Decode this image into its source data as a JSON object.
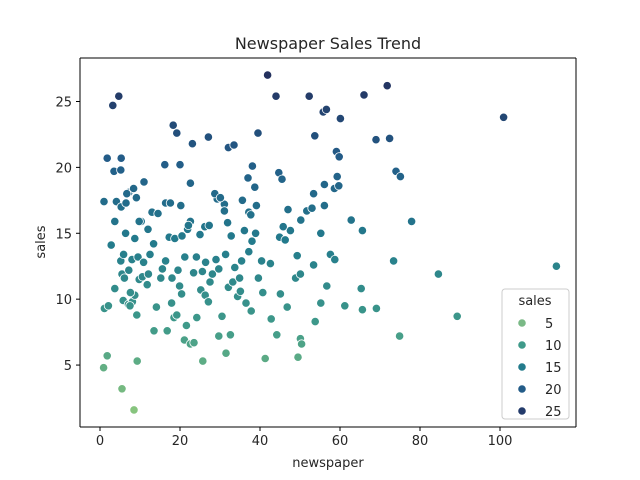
{
  "chart_data": {
    "type": "scatter",
    "title": "Newspaper Sales Trend",
    "xlabel": "newspaper",
    "ylabel": "sales",
    "xlim": [
      -5,
      119
    ],
    "ylim": [
      0.3,
      28.3
    ],
    "xticks": [
      0,
      20,
      40,
      60,
      80,
      100
    ],
    "yticks": [
      5,
      10,
      15,
      20,
      25
    ],
    "grid": false,
    "legend": {
      "title": "sales",
      "placement": "lower-right",
      "entries": [
        {
          "label": "5",
          "color": "#7ab986"
        },
        {
          "label": "10",
          "color": "#3f9a8a"
        },
        {
          "label": "15",
          "color": "#237b8c"
        },
        {
          "label": "20",
          "color": "#235c88"
        },
        {
          "label": "25",
          "color": "#233b6b"
        }
      ]
    },
    "color_scale": {
      "min": 1.6,
      "max": 27.0,
      "palette": [
        "#87c47e",
        "#3f9a8a",
        "#237b8c",
        "#235c88",
        "#24315e"
      ]
    },
    "points": [
      [
        0.9,
        4.8
      ],
      [
        1.8,
        5.7
      ],
      [
        5.5,
        3.2
      ],
      [
        8.5,
        1.6
      ],
      [
        9.3,
        5.3
      ],
      [
        1.1,
        9.3
      ],
      [
        2.1,
        9.5
      ],
      [
        3.7,
        10.8
      ],
      [
        5.8,
        9.9
      ],
      [
        7.1,
        9.6
      ],
      [
        8.1,
        9.8
      ],
      [
        8.7,
        10.3
      ],
      [
        9.2,
        8.8
      ],
      [
        7.5,
        9.5
      ],
      [
        5.5,
        11.9
      ],
      [
        6.1,
        11.6
      ],
      [
        7.6,
        10.5
      ],
      [
        9.8,
        11.5
      ],
      [
        10.6,
        11.7
      ],
      [
        11.8,
        11.1
      ],
      [
        12.1,
        11.9
      ],
      [
        13.5,
        7.6
      ],
      [
        14.1,
        9.4
      ],
      [
        16.8,
        7.6
      ],
      [
        17.9,
        9.7
      ],
      [
        18.5,
        8.6
      ],
      [
        19.2,
        8.8
      ],
      [
        19.9,
        11.0
      ],
      [
        20.4,
        10.4
      ],
      [
        21.1,
        6.9
      ],
      [
        21.6,
        8.0
      ],
      [
        22.6,
        6.6
      ],
      [
        23.5,
        6.7
      ],
      [
        24.2,
        8.6
      ],
      [
        25.7,
        5.3
      ],
      [
        25.2,
        10.7
      ],
      [
        26.3,
        10.3
      ],
      [
        27.1,
        9.8
      ],
      [
        27.5,
        11.3
      ],
      [
        29.7,
        7.2
      ],
      [
        30.5,
        8.7
      ],
      [
        31.5,
        5.9
      ],
      [
        32.6,
        7.3
      ],
      [
        32.1,
        10.9
      ],
      [
        33.2,
        11.3
      ],
      [
        34.4,
        10.2
      ],
      [
        35.1,
        10.6
      ],
      [
        36.5,
        9.7
      ],
      [
        37.8,
        9.1
      ],
      [
        39.6,
        11.6
      ],
      [
        40.7,
        10.5
      ],
      [
        41.3,
        5.5
      ],
      [
        42.8,
        8.5
      ],
      [
        44.2,
        7.3
      ],
      [
        45.1,
        10.4
      ],
      [
        46.8,
        9.4
      ],
      [
        48.9,
        11.6
      ],
      [
        49.5,
        5.6
      ],
      [
        50.1,
        7.0
      ],
      [
        50.4,
        6.6
      ],
      [
        53.8,
        8.3
      ],
      [
        55.2,
        9.7
      ],
      [
        56.7,
        11.0
      ],
      [
        61.2,
        9.5
      ],
      [
        65.3,
        10.8
      ],
      [
        65.6,
        9.2
      ],
      [
        69.1,
        9.3
      ],
      [
        74.9,
        7.2
      ],
      [
        84.6,
        11.9
      ],
      [
        89.3,
        8.7
      ],
      [
        114.1,
        12.5
      ],
      [
        2.8,
        14.1
      ],
      [
        3.7,
        15.9
      ],
      [
        5.2,
        12.9
      ],
      [
        5.9,
        13.4
      ],
      [
        6.4,
        15.0
      ],
      [
        7.2,
        12.2
      ],
      [
        8.0,
        13.0
      ],
      [
        8.7,
        14.6
      ],
      [
        9.5,
        13.2
      ],
      [
        10.3,
        15.9
      ],
      [
        10.9,
        12.8
      ],
      [
        12.0,
        15.3
      ],
      [
        12.5,
        13.4
      ],
      [
        13.4,
        14.2
      ],
      [
        15.2,
        11.6
      ],
      [
        15.6,
        12.3
      ],
      [
        16.4,
        12.9
      ],
      [
        17.3,
        14.7
      ],
      [
        18.0,
        11.6
      ],
      [
        18.7,
        14.6
      ],
      [
        19.5,
        12.2
      ],
      [
        20.5,
        14.8
      ],
      [
        21.2,
        13.2
      ],
      [
        21.9,
        15.3
      ],
      [
        22.6,
        15.9
      ],
      [
        23.4,
        12.0
      ],
      [
        24.1,
        13.2
      ],
      [
        25.0,
        14.9
      ],
      [
        25.6,
        12.1
      ],
      [
        26.4,
        12.8
      ],
      [
        27.2,
        15.6
      ],
      [
        28.1,
        11.9
      ],
      [
        29.0,
        13.0
      ],
      [
        29.7,
        12.3
      ],
      [
        31.4,
        13.4
      ],
      [
        31.9,
        15.8
      ],
      [
        32.8,
        14.8
      ],
      [
        33.7,
        12.4
      ],
      [
        34.9,
        11.6
      ],
      [
        35.4,
        12.9
      ],
      [
        36.1,
        15.2
      ],
      [
        37.2,
        13.6
      ],
      [
        38.0,
        14.4
      ],
      [
        38.9,
        15.0
      ],
      [
        40.4,
        12.9
      ],
      [
        42.6,
        12.7
      ],
      [
        44.9,
        14.7
      ],
      [
        46.3,
        14.5
      ],
      [
        47.6,
        15.2
      ],
      [
        49.3,
        13.3
      ],
      [
        50.1,
        11.9
      ],
      [
        53.4,
        12.6
      ],
      [
        55.2,
        15.0
      ],
      [
        57.6,
        13.4
      ],
      [
        58.7,
        13.0
      ],
      [
        62.8,
        16.0
      ],
      [
        65.6,
        15.2
      ],
      [
        73.4,
        12.9
      ],
      [
        1.0,
        17.4
      ],
      [
        4.1,
        17.4
      ],
      [
        5.3,
        17.0
      ],
      [
        6.5,
        17.3
      ],
      [
        7.2,
        18.1
      ],
      [
        9.1,
        17.7
      ],
      [
        9.8,
        15.9
      ],
      [
        13.0,
        16.6
      ],
      [
        14.5,
        16.5
      ],
      [
        16.4,
        17.3
      ],
      [
        17.6,
        17.3
      ],
      [
        20.2,
        17.1
      ],
      [
        22.1,
        15.6
      ],
      [
        26.2,
        15.5
      ],
      [
        27.3,
        15.6
      ],
      [
        29.3,
        17.6
      ],
      [
        31.1,
        17.2
      ],
      [
        35.6,
        17.5
      ],
      [
        37.2,
        16.6
      ],
      [
        37.7,
        16.4
      ],
      [
        39.1,
        17.1
      ],
      [
        45.8,
        15.5
      ],
      [
        47.0,
        16.8
      ],
      [
        50.2,
        16.0
      ],
      [
        51.7,
        16.7
      ],
      [
        53.0,
        16.9
      ],
      [
        56.1,
        17.1
      ],
      [
        58.6,
        18.4
      ],
      [
        59.7,
        18.6
      ],
      [
        77.9,
        15.9
      ],
      [
        1.8,
        20.7
      ],
      [
        3.5,
        19.7
      ],
      [
        5.2,
        19.8
      ],
      [
        5.3,
        20.7
      ],
      [
        6.7,
        18.0
      ],
      [
        8.4,
        18.4
      ],
      [
        11.0,
        18.9
      ],
      [
        16.2,
        20.2
      ],
      [
        20.0,
        20.2
      ],
      [
        22.6,
        18.8
      ],
      [
        28.7,
        18.0
      ],
      [
        30.1,
        17.7
      ],
      [
        31.1,
        16.7
      ],
      [
        37.0,
        19.2
      ],
      [
        38.1,
        20.1
      ],
      [
        38.7,
        18.5
      ],
      [
        44.7,
        19.6
      ],
      [
        45.5,
        19.1
      ],
      [
        53.4,
        18.0
      ],
      [
        56.1,
        18.7
      ],
      [
        59.3,
        19.3
      ],
      [
        59.1,
        21.2
      ],
      [
        59.8,
        20.8
      ],
      [
        74.0,
        19.7
      ],
      [
        75.1,
        19.3
      ],
      [
        69.0,
        22.1
      ],
      [
        72.4,
        22.2
      ],
      [
        3.2,
        24.7
      ],
      [
        4.7,
        25.4
      ],
      [
        18.3,
        23.2
      ],
      [
        19.2,
        22.6
      ],
      [
        23.1,
        21.8
      ],
      [
        27.1,
        22.3
      ],
      [
        32.1,
        21.5
      ],
      [
        33.5,
        21.7
      ],
      [
        39.5,
        22.6
      ],
      [
        41.9,
        27.0
      ],
      [
        44.0,
        25.4
      ],
      [
        52.3,
        25.4
      ],
      [
        53.7,
        22.4
      ],
      [
        55.8,
        24.2
      ],
      [
        56.6,
        24.4
      ],
      [
        60.1,
        23.7
      ],
      [
        66.0,
        25.5
      ],
      [
        71.8,
        26.2
      ],
      [
        100.9,
        23.8
      ]
    ]
  }
}
